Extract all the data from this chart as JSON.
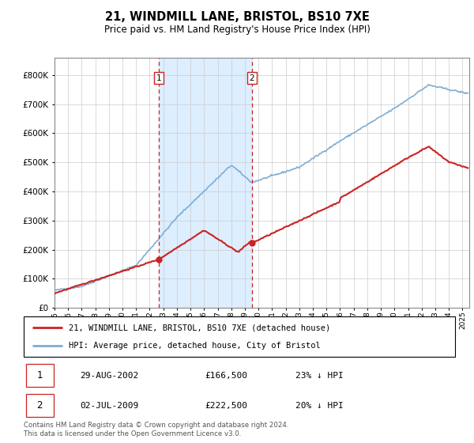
{
  "title": "21, WINDMILL LANE, BRISTOL, BS10 7XE",
  "subtitle": "Price paid vs. HM Land Registry's House Price Index (HPI)",
  "hpi_label": "HPI: Average price, detached house, City of Bristol",
  "property_label": "21, WINDMILL LANE, BRISTOL, BS10 7XE (detached house)",
  "hpi_color": "#7eadd4",
  "property_color": "#cc2222",
  "shade_color": "#ddeeff",
  "vline_color": "#cc2222",
  "marker1_price_val": 166500,
  "marker1_year": 2002.66,
  "marker2_price_val": 222500,
  "marker2_year": 2009.5,
  "marker1_date": "29-AUG-2002",
  "marker1_price": "£166,500",
  "marker1_hpi": "23% ↓ HPI",
  "marker2_date": "02-JUL-2009",
  "marker2_price": "£222,500",
  "marker2_hpi": "20% ↓ HPI",
  "footer": "Contains HM Land Registry data © Crown copyright and database right 2024.\nThis data is licensed under the Open Government Licence v3.0.",
  "ylim": [
    0,
    860000
  ],
  "yticks": [
    0,
    100000,
    200000,
    300000,
    400000,
    500000,
    600000,
    700000,
    800000
  ],
  "xlim_start": 1995,
  "xlim_end": 2025.5
}
